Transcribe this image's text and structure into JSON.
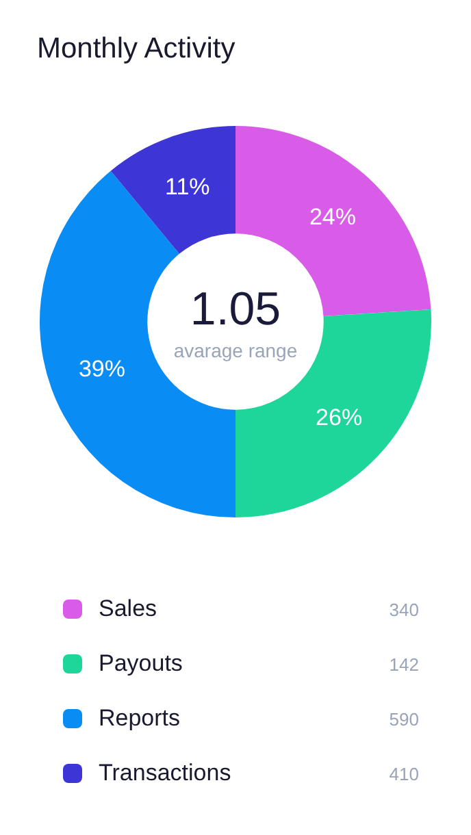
{
  "chart_data": {
    "type": "donut",
    "title": "Monthly Activity",
    "categories": [
      "Sales",
      "Payouts",
      "Reports",
      "Transactions"
    ],
    "values": [
      24,
      26,
      39,
      11
    ],
    "value_labels": [
      "24%",
      "26%",
      "39%",
      "11%"
    ],
    "colors": [
      "#d85ce8",
      "#1ed699",
      "#0a8cf5",
      "#3d35d6"
    ],
    "legend": "bottom",
    "annotations": [
      "1.05",
      "avarage range",
      "340",
      "142",
      "590",
      "410"
    ]
  }
}
